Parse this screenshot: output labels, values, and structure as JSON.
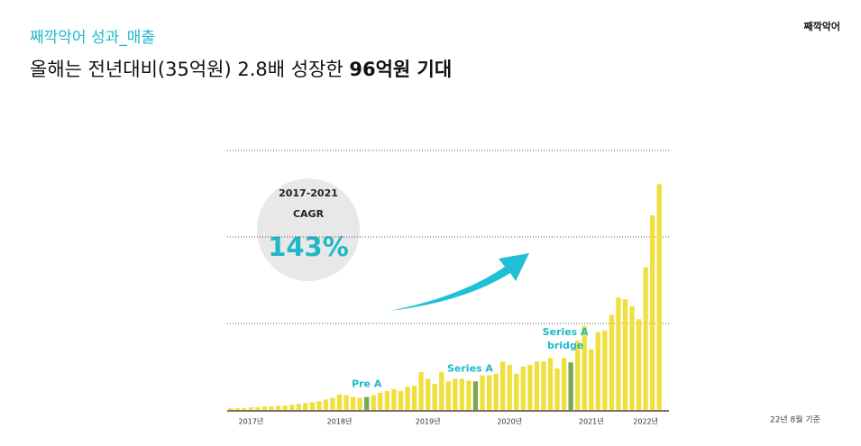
{
  "header": {
    "section": "째깍악어 성과_매출",
    "title": "올해는 전년대비(35억원) 2.8배 성장한 ",
    "title_bold": "96억원 기대",
    "logo": "째깍악어"
  },
  "callout": {
    "period": "2017-2021",
    "metric": "CAGR",
    "value": "143%"
  },
  "footer": "22년 8월 기준",
  "chart_data": {
    "type": "bar",
    "categories": [
      null,
      null,
      null,
      "2017년",
      null,
      null,
      null,
      null,
      null,
      null,
      null,
      null,
      null,
      null,
      null,
      null,
      "2018년",
      null,
      null,
      null,
      null,
      null,
      null,
      null,
      null,
      null,
      null,
      null,
      null,
      "2019년",
      null,
      null,
      null,
      null,
      null,
      null,
      null,
      null,
      null,
      null,
      null,
      "2020년",
      null,
      null,
      null,
      null,
      null,
      null,
      null,
      null,
      null,
      null,
      null,
      "2021년",
      null,
      null,
      null,
      null,
      null,
      null,
      null,
      "2022년",
      null,
      null
    ],
    "values": [
      0.02,
      0.02,
      0.02,
      0.03,
      0.03,
      0.04,
      0.04,
      0.05,
      0.05,
      0.06,
      0.07,
      0.08,
      0.09,
      0.1,
      0.12,
      0.14,
      0.18,
      0.17,
      0.15,
      0.14,
      0.15,
      0.17,
      0.2,
      0.22,
      0.24,
      0.22,
      0.27,
      0.28,
      0.44,
      0.36,
      0.3,
      0.44,
      0.33,
      0.36,
      0.36,
      0.34,
      0.33,
      0.4,
      0.4,
      0.42,
      0.56,
      0.52,
      0.42,
      0.5,
      0.52,
      0.56,
      0.56,
      0.6,
      0.48,
      0.6,
      0.55,
      0.8,
      0.97,
      0.7,
      0.9,
      0.92,
      1.1,
      1.3,
      1.28,
      1.2,
      1.05,
      1.65,
      2.25,
      2.61
    ],
    "colors": [
      "#f0df3c",
      "#f0df3c",
      "#f0df3c",
      "#f0df3c",
      "#f0df3c",
      "#f0df3c",
      "#f0df3c",
      "#f0df3c",
      "#f0df3c",
      "#f0df3c",
      "#f0df3c",
      "#f0df3c",
      "#f0df3c",
      "#f0df3c",
      "#f0df3c",
      "#f0df3c",
      "#f0df3c",
      "#f0df3c",
      "#f0df3c",
      "#f0df3c",
      "#78a653",
      "#f0df3c",
      "#f0df3c",
      "#f0df3c",
      "#f0df3c",
      "#f0df3c",
      "#f0df3c",
      "#f0df3c",
      "#f0df3c",
      "#f0df3c",
      "#f0df3c",
      "#f0df3c",
      "#f0df3c",
      "#f0df3c",
      "#f0df3c",
      "#f0df3c",
      "#78a653",
      "#f0df3c",
      "#f0df3c",
      "#f0df3c",
      "#f0df3c",
      "#f0df3c",
      "#f0df3c",
      "#f0df3c",
      "#f0df3c",
      "#f0df3c",
      "#f0df3c",
      "#f0df3c",
      "#f0df3c",
      "#f0df3c",
      "#78a653",
      "#f0df3c",
      "#f0df3c",
      "#f0df3c",
      "#f0df3c",
      "#f0df3c",
      "#f0df3c",
      "#f0df3c",
      "#f0df3c",
      "#f0df3c",
      "#f0df3c",
      "#f0df3c",
      "#f0df3c",
      "#f0df3c"
    ],
    "ylim": [
      0,
      3
    ],
    "yticks": [
      1,
      2,
      3
    ],
    "grid": true,
    "annotations": [
      "Pre A",
      "Series A",
      "Series A",
      "bridge"
    ]
  }
}
